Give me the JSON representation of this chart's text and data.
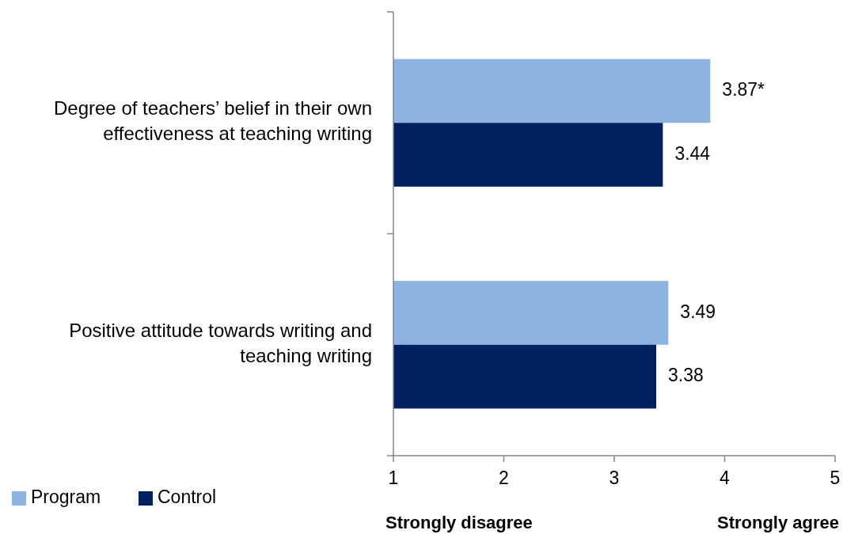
{
  "chart_data": {
    "type": "bar",
    "orientation": "horizontal",
    "categories": [
      "Degree of teachers’ belief in their own effectiveness at teaching writing",
      "Positive attitude towards writing and teaching writing"
    ],
    "series": [
      {
        "name": "Program",
        "color": "#8db3e2",
        "values": [
          3.87,
          3.49
        ],
        "value_labels": [
          "3.87*",
          "3.49"
        ]
      },
      {
        "name": "Control",
        "color": "#002060",
        "values": [
          3.44,
          3.38
        ],
        "value_labels": [
          "3.44",
          "3.38"
        ]
      }
    ],
    "xlim": [
      1,
      5
    ],
    "xticks": [
      1,
      2,
      3,
      4,
      5
    ],
    "grid": false,
    "legend": "bottom left",
    "annotations": [
      "Strongly disagree",
      "Strongly agree"
    ]
  }
}
